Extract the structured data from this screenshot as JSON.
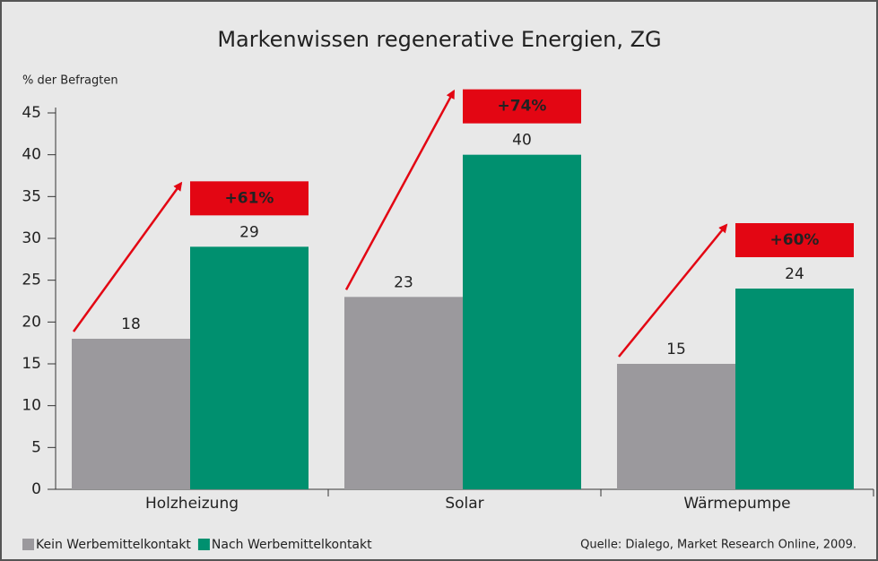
{
  "chart_data": {
    "type": "bar",
    "title": "Markenwissen regenerative Energien, ZG",
    "y_label": "% der Befragten",
    "categories": [
      "Holzheizung",
      "Solar",
      "Wärmepumpe"
    ],
    "series": [
      {
        "name": "Kein Werbemittelkontakt",
        "color": "#9b999d",
        "values": [
          18,
          23,
          15
        ]
      },
      {
        "name": "Nach Werbemittelkontakt",
        "color": "#00906f",
        "values": [
          29,
          40,
          24
        ]
      }
    ],
    "annotations": [
      "+61%",
      "+74%",
      "+60%"
    ],
    "annotation_color": "#e30613",
    "ylim": [
      0,
      45
    ],
    "yticks": [
      0,
      5,
      10,
      15,
      20,
      25,
      30,
      35,
      40,
      45
    ],
    "source": "Quelle: Dialego, Market Research Online, 2009."
  }
}
